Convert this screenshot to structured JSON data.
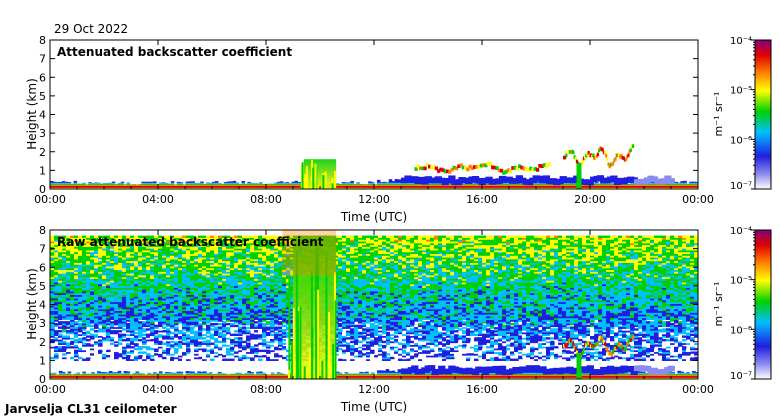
{
  "date": "29 Oct 2022",
  "instrument": "Jarvselja CL31 ceilometer",
  "chart_data": [
    {
      "type": "heatmap",
      "title": "Attenuated backscatter coefficient",
      "xlabel": "Time (UTC)",
      "ylabel": "Height (km)",
      "xlim": [
        0,
        24
      ],
      "ylim": [
        0,
        8
      ],
      "x_ticks": [
        "00:00",
        "04:00",
        "08:00",
        "12:00",
        "16:00",
        "20:00",
        "00:00"
      ],
      "y_ticks": [
        "0",
        "1",
        "2",
        "3",
        "4",
        "5",
        "6",
        "7",
        "8"
      ],
      "colorbar": {
        "label": "m⁻¹ sr⁻¹",
        "scale": "log",
        "range": [
          1e-07,
          0.0001
        ],
        "ticks": [
          "10⁻⁷",
          "10⁻⁶",
          "10⁻⁵",
          "10⁻⁴"
        ],
        "colormap": [
          "#ffffff",
          "#1f1fdf",
          "#00bfff",
          "#00d000",
          "#ffff00",
          "#ff8000",
          "#e00000",
          "#800080"
        ]
      },
      "features": [
        {
          "label": "boundary layer",
          "x_range": [
            0,
            24
          ],
          "height_km": [
            0,
            0.4
          ]
        },
        {
          "label": "convective plume",
          "x_range": [
            9.2,
            10.6
          ],
          "height_km": [
            0,
            1.6
          ]
        },
        {
          "label": "cloud layer",
          "x_range": [
            13.5,
            18.5
          ],
          "height_km": [
            0.9,
            1.4
          ]
        },
        {
          "label": "cloud layer",
          "x_range": [
            19.0,
            21.6
          ],
          "height_km": [
            1.3,
            2.6
          ]
        }
      ]
    },
    {
      "type": "heatmap",
      "title": "Raw attenuated backscatter coefficient",
      "xlabel": "Time (UTC)",
      "ylabel": "Height (km)",
      "xlim": [
        0,
        24
      ],
      "ylim": [
        0,
        8
      ],
      "x_ticks": [
        "00:00",
        "04:00",
        "08:00",
        "12:00",
        "16:00",
        "20:00",
        "00:00"
      ],
      "y_ticks": [
        "0",
        "1",
        "2",
        "3",
        "4",
        "5",
        "6",
        "7",
        "8"
      ],
      "colorbar": {
        "label": "m⁻¹ sr⁻¹",
        "scale": "log",
        "range": [
          1e-07,
          0.0001
        ],
        "ticks": [
          "10⁻⁷",
          "10⁻⁶",
          "10⁻⁵",
          "10⁻⁴"
        ],
        "colormap": [
          "#ffffff",
          "#1f1fdf",
          "#00bfff",
          "#00d000",
          "#ffff00",
          "#ff8000",
          "#e00000",
          "#800080"
        ]
      },
      "features": [
        {
          "label": "noise field",
          "x_range": [
            0,
            24
          ],
          "height_km": [
            1.0,
            7.7
          ]
        },
        {
          "label": "boundary layer",
          "x_range": [
            0,
            24
          ],
          "height_km": [
            0,
            0.4
          ]
        },
        {
          "label": "convective plume",
          "x_range": [
            8.8,
            10.6
          ],
          "height_km": [
            0,
            7.7
          ]
        },
        {
          "label": "cloud layer",
          "x_range": [
            19.0,
            21.6
          ],
          "height_km": [
            1.3,
            2.6
          ]
        }
      ]
    }
  ]
}
